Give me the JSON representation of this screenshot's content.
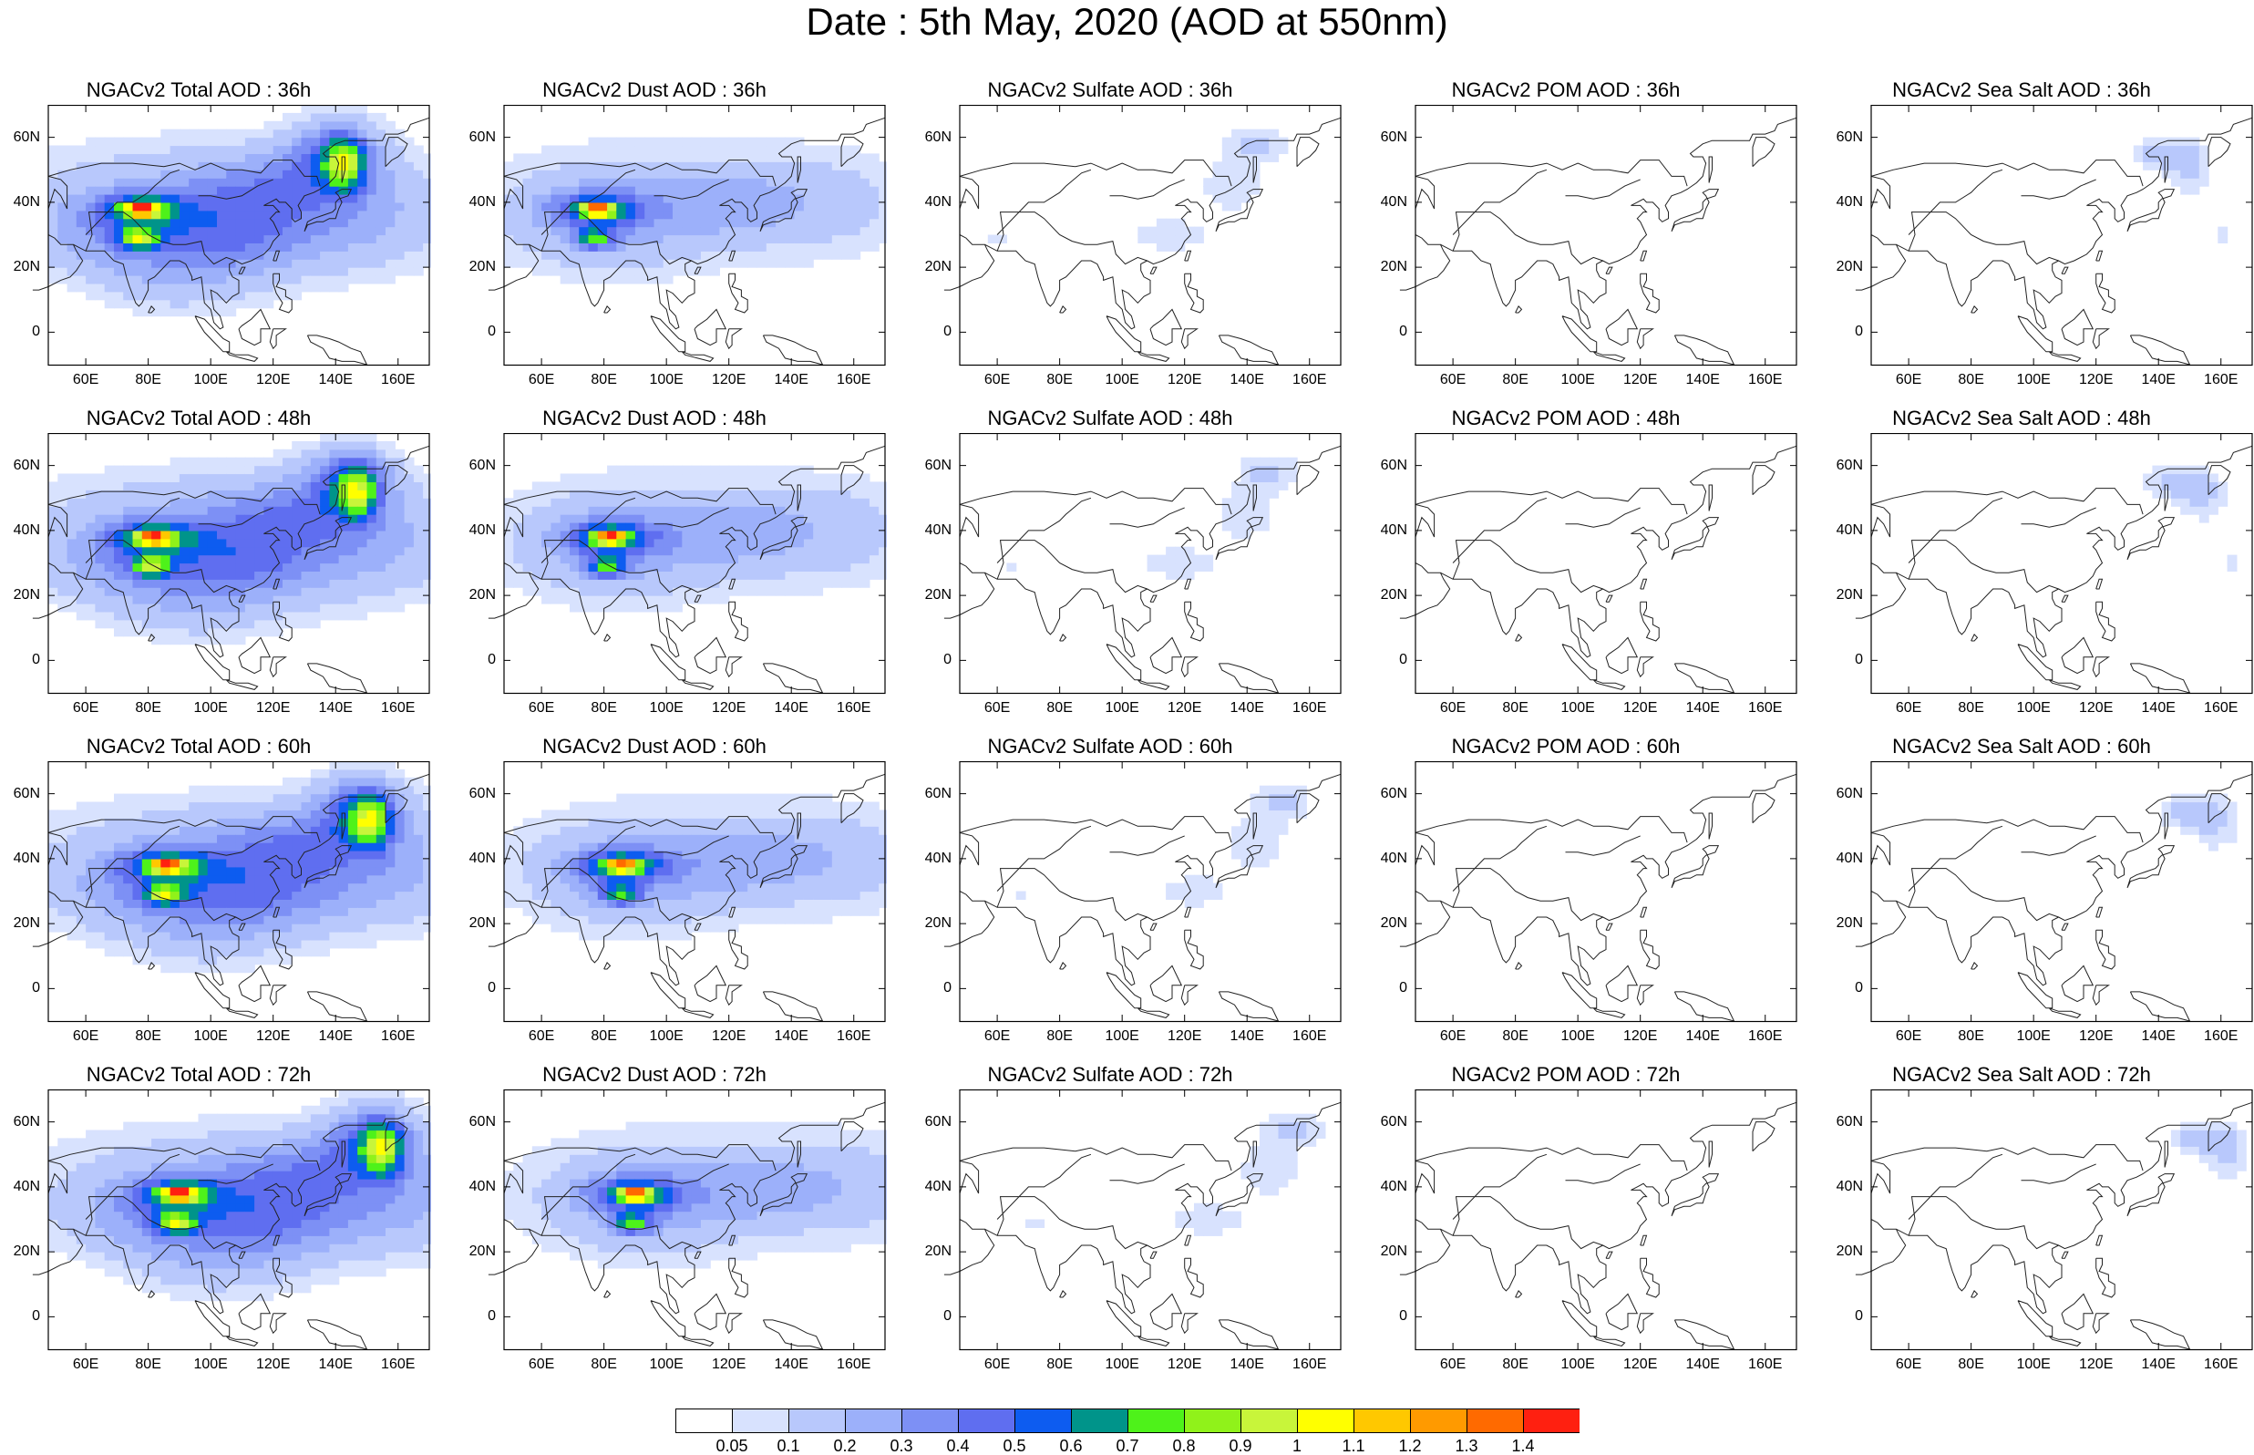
{
  "title": "Date : 5th May, 2020 (AOD at 550nm)",
  "axes": {
    "x_ticks": [
      "60E",
      "80E",
      "100E",
      "120E",
      "140E",
      "160E"
    ],
    "y_ticks": [
      "60N",
      "40N",
      "20N",
      "0"
    ],
    "lon_range": [
      48,
      170
    ],
    "lat_range": [
      -10,
      70
    ],
    "x_tick_values": [
      60,
      80,
      100,
      120,
      140,
      160
    ],
    "y_tick_values": [
      60,
      40,
      20,
      0
    ]
  },
  "rows": [
    "36h",
    "48h",
    "60h",
    "72h"
  ],
  "columns": [
    "Total",
    "Dust",
    "Sulfate",
    "POM",
    "Sea Salt"
  ],
  "panels": [
    [
      "NGACv2 Total AOD : 36h",
      "NGACv2 Dust AOD : 36h",
      "NGACv2 Sulfate AOD : 36h",
      "NGACv2 POM AOD : 36h",
      "NGACv2 Sea Salt AOD : 36h"
    ],
    [
      "NGACv2 Total AOD : 48h",
      "NGACv2 Dust AOD : 48h",
      "NGACv2 Sulfate AOD : 48h",
      "NGACv2 POM AOD : 48h",
      "NGACv2 Sea Salt AOD : 48h"
    ],
    [
      "NGACv2 Total AOD : 60h",
      "NGACv2 Dust AOD : 60h",
      "NGACv2 Sulfate AOD : 60h",
      "NGACv2 POM AOD : 60h",
      "NGACv2 Sea Salt AOD : 60h"
    ],
    [
      "NGACv2 Total AOD : 72h",
      "NGACv2 Dust AOD : 72h",
      "NGACv2 Sulfate AOD : 72h",
      "NGACv2 POM AOD : 72h",
      "NGACv2 Sea Salt  AOD : 72h"
    ]
  ],
  "colorbar": {
    "labels": [
      "0.05",
      "0.1",
      "0.2",
      "0.3",
      "0.4",
      "0.5",
      "0.6",
      "0.7",
      "0.8",
      "0.9",
      "1",
      "1.1",
      "1.2",
      "1.3",
      "1.4"
    ],
    "colors": [
      "#ffffff",
      "#d8e2fe",
      "#b8c8fc",
      "#9cb0fa",
      "#7d90f5",
      "#5f6ef0",
      "#0d5cf0",
      "#00948a",
      "#4ef21a",
      "#90f21a",
      "#c8f53a",
      "#ffff00",
      "#ffc800",
      "#ff9a00",
      "#ff6a00",
      "#ff2010"
    ]
  }
}
